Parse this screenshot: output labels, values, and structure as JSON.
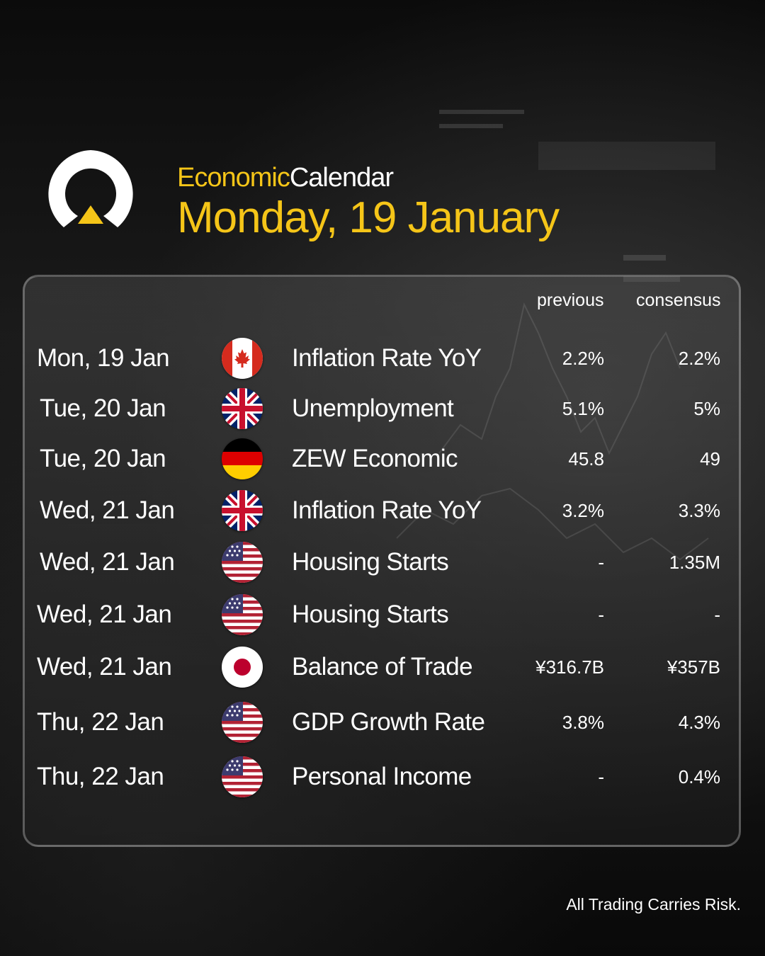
{
  "header": {
    "subtitle_accent": "Economic",
    "subtitle_plain": "Calendar",
    "title": "Monday, 19 January"
  },
  "colors": {
    "accent": "#f5c518",
    "text": "#ffffff"
  },
  "table": {
    "columns": {
      "previous": "previous",
      "consensus": "consensus"
    },
    "rows": [
      {
        "date": "Mon, 19 Jan",
        "flag": "canada-flag-icon",
        "event": "Inflation Rate YoY",
        "previous": "2.2%",
        "consensus": "2.2%"
      },
      {
        "date": "Tue, 20 Jan",
        "flag": "uk-flag-icon",
        "event": "Unemployment",
        "previous": "5.1%",
        "consensus": "5%"
      },
      {
        "date": "Tue, 20 Jan",
        "flag": "germany-flag-icon",
        "event": "ZEW Economic",
        "previous": "45.8",
        "consensus": "49"
      },
      {
        "date": "Wed, 21 Jan",
        "flag": "uk-flag-icon",
        "event": "Inflation Rate YoY",
        "previous": "3.2%",
        "consensus": "3.3%"
      },
      {
        "date": "Wed, 21 Jan",
        "flag": "usa-flag-icon",
        "event": "Housing Starts",
        "previous": "-",
        "consensus": "1.35M"
      },
      {
        "date": "Wed, 21 Jan",
        "flag": "usa-flag-icon",
        "event": "Housing Starts",
        "previous": "-",
        "consensus": "-"
      },
      {
        "date": "Wed, 21 Jan",
        "flag": "japan-flag-icon",
        "event": "Balance of Trade",
        "previous": "¥316.7B",
        "consensus": "¥357B"
      },
      {
        "date": "Thu, 22 Jan",
        "flag": "usa-flag-icon",
        "event": "GDP Growth Rate",
        "previous": "3.8%",
        "consensus": "4.3%"
      },
      {
        "date": "Thu, 22 Jan",
        "flag": "usa-flag-icon",
        "event": "Personal Income",
        "previous": "-",
        "consensus": "0.4%"
      }
    ]
  },
  "footer": {
    "disclaimer": "All Trading Carries Risk."
  }
}
